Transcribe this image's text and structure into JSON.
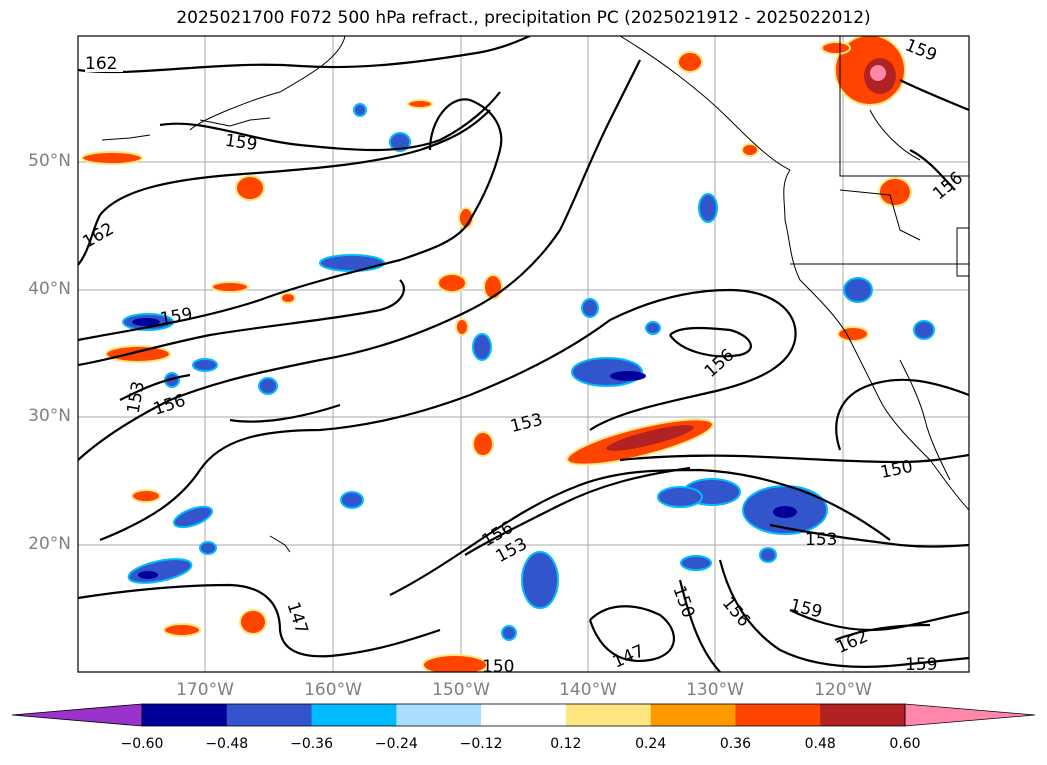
{
  "title": "2025021700 F072 500 hPa refract., precipitation PC (2025021912 - 2025022012)",
  "latitude_labels": [
    "50°N",
    "40°N",
    "30°N",
    "20°N"
  ],
  "longitude_labels": [
    "170°W",
    "160°W",
    "150°W",
    "140°W",
    "130°W",
    "120°W"
  ],
  "colorbar": {
    "tick_labels": [
      "−0.60",
      "−0.48",
      "−0.36",
      "−0.24",
      "−0.12",
      "0.12",
      "0.24",
      "0.36",
      "0.48",
      "0.60"
    ],
    "colors": [
      "#9933cc",
      "#000099",
      "#3355cc",
      "#00bbff",
      "#aaddff",
      "#ffffff",
      "#ffe680",
      "#ff9900",
      "#ff4400",
      "#b22222",
      "#ff88aa"
    ]
  },
  "contour_labels": [
    "162",
    "159",
    "162",
    "159",
    "156",
    "153",
    "153",
    "156",
    "153",
    "156",
    "159",
    "156",
    "150",
    "153",
    "150",
    "156",
    "159",
    "162",
    "147",
    "147",
    "150",
    "159",
    "150"
  ],
  "colors": {
    "grid": "#aaaaaa",
    "contour": "#000000",
    "coast": "#000000",
    "negative_dark": "#000099",
    "positive_dark": "#b22222"
  }
}
